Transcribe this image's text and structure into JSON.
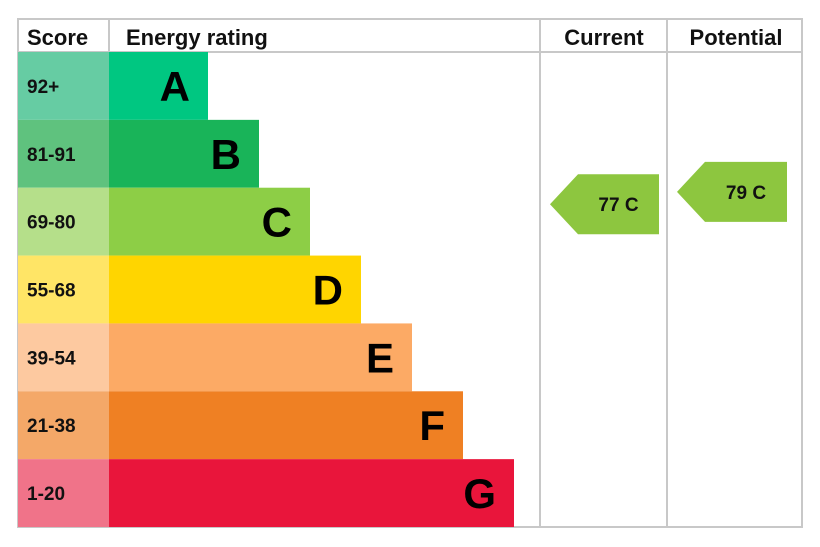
{
  "chart_data": {
    "type": "bar",
    "headers": {
      "score": "Score",
      "rating": "Energy rating",
      "current": "Current",
      "potential": "Potential"
    },
    "bands": [
      {
        "letter": "A",
        "range": "92+",
        "color": "#00c781",
        "light": "#66cca3"
      },
      {
        "letter": "B",
        "range": "81-91",
        "color": "#19b459",
        "light": "#5fc27e"
      },
      {
        "letter": "C",
        "range": "69-80",
        "color": "#8dce46",
        "light": "#b5df8a"
      },
      {
        "letter": "D",
        "range": "55-68",
        "color": "#ffd500",
        "light": "#ffe566"
      },
      {
        "letter": "E",
        "range": "39-54",
        "color": "#fcaa65",
        "light": "#fdc9a0"
      },
      {
        "letter": "F",
        "range": "21-38",
        "color": "#ef8023",
        "light": "#f4a868"
      },
      {
        "letter": "G",
        "range": "1-20",
        "color": "#e9153b",
        "light": "#f07389"
      }
    ],
    "current": {
      "value": 77,
      "band": "C",
      "label": "77 C",
      "color": "#8dc63f"
    },
    "potential": {
      "value": 79,
      "band": "C",
      "label": "79 C",
      "color": "#8dc63f"
    }
  }
}
